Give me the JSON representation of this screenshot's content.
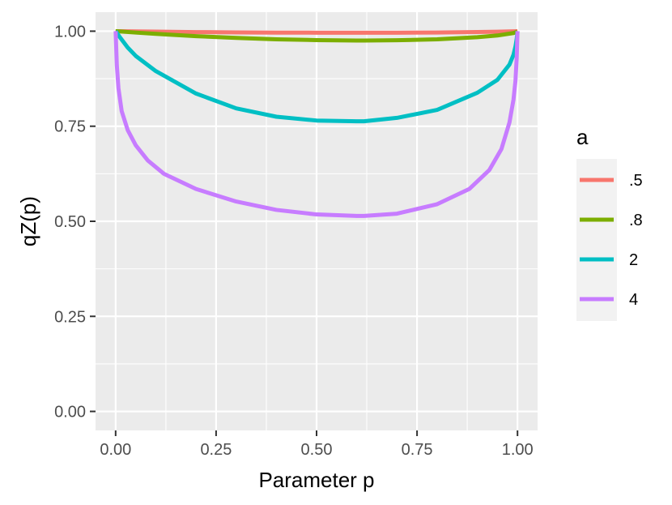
{
  "chart_data": {
    "type": "line",
    "title": "",
    "xlabel": "Parameter p",
    "ylabel": "qZ(p)",
    "xlim": [
      -0.05,
      1.05
    ],
    "ylim": [
      -0.05,
      1.05
    ],
    "x_ticks": [
      0,
      0.25,
      0.5,
      0.75,
      1
    ],
    "y_ticks": [
      0,
      0.25,
      0.5,
      0.75,
      1
    ],
    "x_tick_labels": [
      "0.00",
      "0.25",
      "0.50",
      "0.75",
      "1.00"
    ],
    "y_tick_labels": [
      "0.00",
      "0.25",
      "0.50",
      "0.75",
      "1.00"
    ],
    "grid": true,
    "legend": {
      "title": "a",
      "position": "right"
    },
    "series": [
      {
        "name": ".5",
        "color": "#F8766D",
        "x": [
          0,
          0.002,
          0.01,
          0.05,
          0.1,
          0.2,
          0.3,
          0.4,
          0.5,
          0.6,
          0.618,
          0.7,
          0.8,
          0.9,
          0.95,
          0.99,
          0.998,
          1
        ],
        "y": [
          1,
          1.0,
          0.9999,
          0.9993,
          0.9987,
          0.9976,
          0.9968,
          0.9963,
          0.996,
          0.9959,
          0.9959,
          0.996,
          0.9965,
          0.9977,
          0.9986,
          0.9996,
          0.9999,
          1
        ]
      },
      {
        "name": ".8",
        "color": "#7CAE00",
        "x": [
          0,
          0.002,
          0.01,
          0.05,
          0.1,
          0.2,
          0.3,
          0.4,
          0.5,
          0.6,
          0.618,
          0.7,
          0.8,
          0.9,
          0.95,
          0.99,
          0.998,
          1
        ],
        "y": [
          1,
          0.9999,
          0.9994,
          0.9963,
          0.993,
          0.9869,
          0.9822,
          0.9787,
          0.9765,
          0.9755,
          0.9754,
          0.9761,
          0.9786,
          0.9841,
          0.9886,
          0.9951,
          0.998,
          1
        ]
      },
      {
        "name": "2",
        "color": "#00BFC4",
        "x": [
          0,
          0.002,
          0.01,
          0.03,
          0.05,
          0.1,
          0.2,
          0.3,
          0.4,
          0.5,
          0.6,
          0.618,
          0.7,
          0.8,
          0.9,
          0.95,
          0.98,
          0.99,
          0.995,
          0.998,
          1
        ],
        "y": [
          1,
          0.997,
          0.985,
          0.957,
          0.935,
          0.895,
          0.836,
          0.797,
          0.775,
          0.765,
          0.763,
          0.763,
          0.772,
          0.793,
          0.838,
          0.872,
          0.912,
          0.938,
          0.96,
          0.98,
          1
        ]
      },
      {
        "name": "4",
        "color": "#C77CFF",
        "x": [
          0,
          0.001,
          0.003,
          0.007,
          0.015,
          0.03,
          0.05,
          0.08,
          0.12,
          0.2,
          0.3,
          0.4,
          0.5,
          0.6,
          0.618,
          0.7,
          0.8,
          0.88,
          0.93,
          0.96,
          0.98,
          0.99,
          0.995,
          0.998,
          1
        ],
        "y": [
          1,
          0.97,
          0.91,
          0.85,
          0.79,
          0.74,
          0.7,
          0.66,
          0.625,
          0.585,
          0.552,
          0.53,
          0.518,
          0.514,
          0.514,
          0.52,
          0.545,
          0.585,
          0.635,
          0.69,
          0.76,
          0.82,
          0.87,
          0.93,
          1
        ]
      }
    ]
  }
}
